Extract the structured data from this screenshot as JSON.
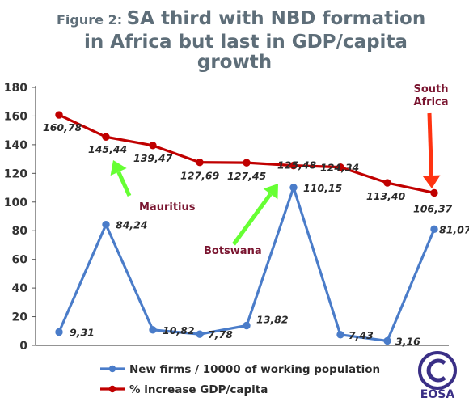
{
  "chart_data": {
    "type": "line",
    "title_prefix": "Figure 2:",
    "title_lines": [
      "SA third with NBD formation",
      "in Africa but last in GDP/capita",
      "growth"
    ],
    "xlabel": "",
    "ylabel": "",
    "ylim": [
      0,
      180
    ],
    "yticks": [
      0,
      20,
      40,
      60,
      80,
      100,
      120,
      140,
      160,
      180
    ],
    "categories": [
      "",
      "",
      "",
      "",
      "",
      "",
      "",
      "",
      ""
    ],
    "grid": false,
    "legend_position": "bottom",
    "series": [
      {
        "name": "New firms / 10000 of working population",
        "color": "#4a7cc9",
        "values": [
          9.31,
          84.24,
          10.82,
          7.78,
          13.82,
          110.15,
          7.43,
          3.16,
          81.07
        ],
        "labels": [
          "9,31",
          "84,24",
          "10,82",
          "7,78",
          "13,82",
          "110,15",
          "7,43",
          "3,16",
          "81,07"
        ]
      },
      {
        "name": "% increase GDP/capita",
        "color": "#c00000",
        "values": [
          160.78,
          145.44,
          139.47,
          127.69,
          127.45,
          125.48,
          124.34,
          113.4,
          106.37
        ],
        "labels": [
          "160,78",
          "145,44",
          "139,47",
          "127,69",
          "127,45",
          "125,48",
          "124,34",
          "113,40",
          "106,37"
        ]
      }
    ],
    "annotations": [
      {
        "text": [
          "Mauritius"
        ],
        "color": "#7a1530",
        "arrow_color": "#66ff33",
        "points_to": {
          "series": 1,
          "index": 1
        }
      },
      {
        "text": [
          "Botswana"
        ],
        "color": "#7a1530",
        "arrow_color": "#66ff33",
        "points_to": {
          "series": 0,
          "index": 5
        }
      },
      {
        "text": [
          "South",
          "Africa"
        ],
        "color": "#7a1530",
        "arrow_color": "#ff3311",
        "points_to": {
          "series": 1,
          "index": 8
        }
      }
    ]
  },
  "logo": {
    "name": "copyright-icon",
    "text": "EOSA",
    "color": "#3a2f86"
  }
}
